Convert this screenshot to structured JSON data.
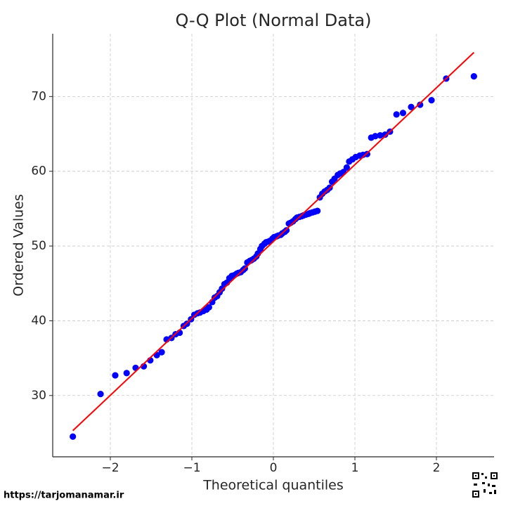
{
  "chart_data": {
    "type": "scatter",
    "title": "Q-Q Plot (Normal Data)",
    "x_label": "Theoretical quantiles",
    "y_label": "Ordered Values",
    "xlim": [
      -2.707,
      2.707
    ],
    "ylim": [
      21.8,
      78.4
    ],
    "xticks": [
      {
        "value": -2,
        "label": "−2"
      },
      {
        "value": -1,
        "label": "−1"
      },
      0,
      1,
      2
    ],
    "yticks": [
      30,
      40,
      50,
      60,
      70
    ],
    "grid": true,
    "series": [
      {
        "color": "#0000ff",
        "x": [
          -2.46,
          -2.12,
          -1.94,
          -1.8,
          -1.69,
          -1.59,
          -1.51,
          -1.43,
          -1.37,
          -1.31,
          -1.25,
          -1.2,
          -1.15,
          -1.1,
          -1.06,
          -1.01,
          -0.97,
          -0.93,
          -0.9,
          -0.86,
          -0.82,
          -0.79,
          -0.75,
          -0.72,
          -0.69,
          -0.66,
          -0.63,
          -0.6,
          -0.57,
          -0.54,
          -0.51,
          -0.48,
          -0.45,
          -0.43,
          -0.4,
          -0.37,
          -0.35,
          -0.32,
          -0.29,
          -0.27,
          -0.24,
          -0.21,
          -0.19,
          -0.16,
          -0.14,
          -0.11,
          -0.09,
          -0.06,
          -0.04,
          -0.01,
          0.01,
          0.04,
          0.06,
          0.09,
          0.11,
          0.14,
          0.16,
          0.19,
          0.21,
          0.24,
          0.27,
          0.29,
          0.32,
          0.35,
          0.37,
          0.4,
          0.43,
          0.45,
          0.48,
          0.51,
          0.54,
          0.57,
          0.6,
          0.63,
          0.66,
          0.69,
          0.72,
          0.75,
          0.79,
          0.82,
          0.86,
          0.9,
          0.93,
          0.97,
          1.01,
          1.06,
          1.1,
          1.15,
          1.2,
          1.25,
          1.31,
          1.37,
          1.43,
          1.51,
          1.59,
          1.69,
          1.8,
          1.94,
          2.12,
          2.46
        ],
        "values": [
          24.5,
          30.2,
          32.7,
          33.0,
          33.7,
          33.9,
          34.7,
          35.4,
          35.8,
          37.5,
          37.7,
          38.2,
          38.4,
          39.3,
          39.6,
          40.2,
          40.8,
          41.0,
          41.1,
          41.3,
          41.5,
          41.8,
          42.5,
          43.1,
          43.3,
          43.8,
          44.3,
          44.9,
          45.1,
          45.7,
          46.0,
          46.1,
          46.3,
          46.4,
          46.5,
          46.8,
          47.0,
          47.8,
          48.0,
          48.1,
          48.3,
          48.6,
          49.0,
          49.6,
          50.0,
          50.3,
          50.5,
          50.6,
          50.7,
          51.0,
          51.2,
          51.3,
          51.4,
          51.5,
          51.7,
          51.9,
          52.1,
          53.0,
          53.1,
          53.3,
          53.6,
          53.8,
          53.9,
          54.0,
          54.1,
          54.2,
          54.3,
          54.4,
          54.5,
          54.6,
          54.7,
          56.5,
          57.0,
          57.3,
          57.5,
          57.8,
          58.6,
          59.0,
          59.5,
          59.7,
          59.9,
          60.5,
          61.3,
          61.6,
          61.9,
          62.1,
          62.2,
          62.3,
          64.5,
          64.7,
          64.8,
          64.9,
          65.3,
          67.6,
          67.8,
          68.6,
          68.9,
          69.5,
          72.4,
          72.7
        ]
      }
    ],
    "fit_line": {
      "color": "#ff0000",
      "x": [
        -2.46,
        2.46
      ],
      "values": [
        25.3,
        75.9
      ]
    }
  },
  "watermark": "https://tarjomanamar.ir"
}
